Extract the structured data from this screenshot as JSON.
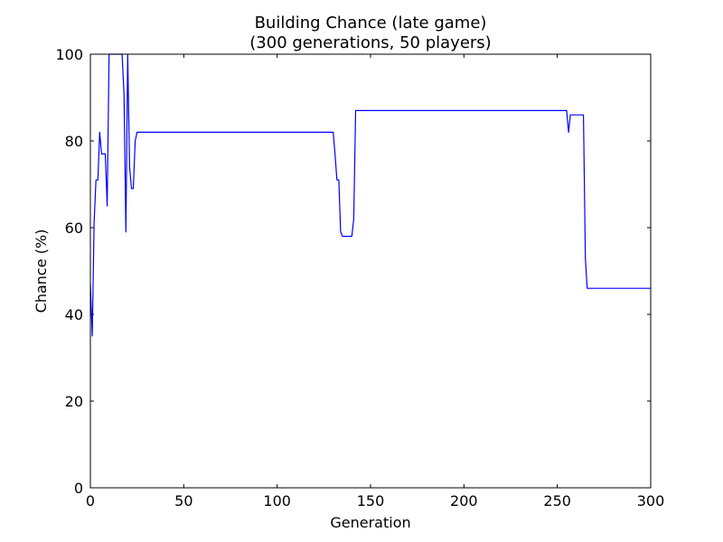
{
  "chart_data": {
    "type": "line",
    "title": "Building Chance (late game)",
    "subtitle": "(300 generations, 50 players)",
    "xlabel": "Generation",
    "ylabel": "Chance (%)",
    "xlim": [
      0,
      300
    ],
    "ylim": [
      0,
      100
    ],
    "xticks": [
      0,
      50,
      100,
      150,
      200,
      250,
      300
    ],
    "yticks": [
      0,
      20,
      40,
      60,
      80,
      100
    ],
    "xtick_labels": [
      "0",
      "50",
      "100",
      "150",
      "200",
      "250",
      "300"
    ],
    "ytick_labels": [
      "0",
      "20",
      "40",
      "60",
      "80",
      "100"
    ],
    "grid": false,
    "series": [
      {
        "color": "#0000ff",
        "points": [
          [
            0,
            47
          ],
          [
            1,
            35
          ],
          [
            2,
            61
          ],
          [
            3,
            71
          ],
          [
            4,
            71
          ],
          [
            5,
            82
          ],
          [
            6,
            77
          ],
          [
            8,
            77
          ],
          [
            9,
            65
          ],
          [
            10,
            100
          ],
          [
            17,
            100
          ],
          [
            18,
            91
          ],
          [
            19,
            59
          ],
          [
            20,
            100
          ],
          [
            21,
            74
          ],
          [
            22,
            69
          ],
          [
            23,
            69
          ],
          [
            24,
            80
          ],
          [
            25,
            82
          ],
          [
            130,
            82
          ],
          [
            131,
            77
          ],
          [
            132,
            71
          ],
          [
            133,
            71
          ],
          [
            134,
            59
          ],
          [
            135,
            58
          ],
          [
            140,
            58
          ],
          [
            141,
            62
          ],
          [
            142,
            87
          ],
          [
            255,
            87
          ],
          [
            256,
            82
          ],
          [
            257,
            86
          ],
          [
            264,
            86
          ],
          [
            265,
            53
          ],
          [
            266,
            46
          ],
          [
            300,
            46
          ]
        ]
      }
    ]
  }
}
